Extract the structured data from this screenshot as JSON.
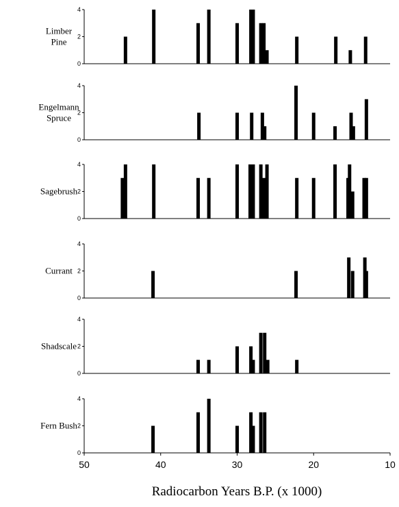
{
  "chart_data": {
    "type": "bar",
    "xlabel": "Radiocarbon Years B.P. (x 1000)",
    "x_ticks": [
      50,
      40,
      30,
      20,
      10
    ],
    "xlim": [
      50,
      10
    ],
    "x_reversed": true,
    "y_ticks": [
      0,
      2,
      4
    ],
    "ylim": [
      0,
      4
    ],
    "bar_color": "#000000",
    "series": [
      {
        "label_lines": [
          "Limber",
          "Pine"
        ],
        "points": [
          [
            44.6,
            2
          ],
          [
            40.9,
            4
          ],
          [
            35.1,
            3
          ],
          [
            33.7,
            4
          ],
          [
            30,
            3
          ],
          [
            28.2,
            4
          ],
          [
            27.9,
            4
          ],
          [
            26.9,
            3
          ],
          [
            26.5,
            3
          ],
          [
            26.1,
            1
          ],
          [
            22.2,
            2
          ],
          [
            17.1,
            2
          ],
          [
            15.2,
            1
          ],
          [
            13.2,
            2
          ]
        ]
      },
      {
        "label_lines": [
          "Engelmann",
          "Spruce"
        ],
        "points": [
          [
            35,
            2
          ],
          [
            30,
            2
          ],
          [
            28.1,
            2
          ],
          [
            26.7,
            2
          ],
          [
            26.4,
            1
          ],
          [
            22.3,
            4
          ],
          [
            20,
            2
          ],
          [
            17.2,
            1
          ],
          [
            15.1,
            2
          ],
          [
            14.8,
            1
          ],
          [
            13.1,
            3
          ]
        ]
      },
      {
        "label_lines": [
          "Sagebrush"
        ],
        "points": [
          [
            45,
            3
          ],
          [
            44.6,
            4
          ],
          [
            40.9,
            4
          ],
          [
            35.1,
            3
          ],
          [
            33.7,
            3
          ],
          [
            30,
            4
          ],
          [
            28.3,
            4
          ],
          [
            27.9,
            4
          ],
          [
            26.9,
            4
          ],
          [
            26.5,
            3
          ],
          [
            26.1,
            4
          ],
          [
            22.2,
            3
          ],
          [
            20,
            3
          ],
          [
            17.2,
            4
          ],
          [
            15.5,
            3
          ],
          [
            15.3,
            4
          ],
          [
            14.9,
            2
          ],
          [
            13.4,
            3
          ],
          [
            13.1,
            3
          ]
        ]
      },
      {
        "label_lines": [
          "Currant"
        ],
        "points": [
          [
            41,
            2
          ],
          [
            22.3,
            2
          ],
          [
            15.4,
            3
          ],
          [
            14.9,
            2
          ],
          [
            13.3,
            3
          ],
          [
            13.1,
            2
          ]
        ]
      },
      {
        "label_lines": [
          "Shadscale"
        ],
        "points": [
          [
            35.1,
            1
          ],
          [
            33.7,
            1
          ],
          [
            30,
            2
          ],
          [
            28.2,
            2
          ],
          [
            27.9,
            1
          ],
          [
            26.9,
            3
          ],
          [
            26.4,
            3
          ],
          [
            26,
            1
          ],
          [
            22.2,
            1
          ]
        ]
      },
      {
        "label_lines": [
          "Fern Bush"
        ],
        "points": [
          [
            41,
            2
          ],
          [
            35.1,
            3
          ],
          [
            33.7,
            4
          ],
          [
            30,
            2
          ],
          [
            28.2,
            3
          ],
          [
            27.9,
            2
          ],
          [
            26.9,
            3
          ],
          [
            26.4,
            3
          ]
        ]
      }
    ]
  }
}
